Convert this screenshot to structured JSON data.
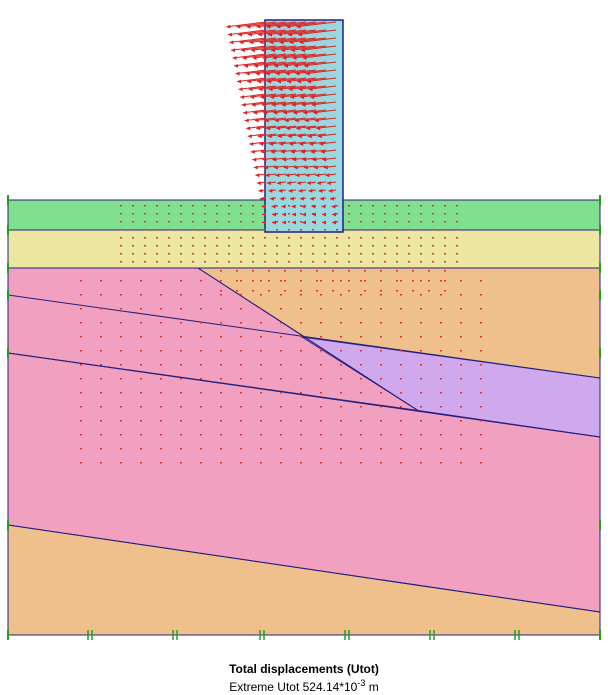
{
  "caption": {
    "title": "Total displacements (Utot)",
    "extreme": {
      "prefix": "Extreme Utot 524.14*10",
      "exponent": "-3",
      "unit": "m"
    }
  }
}
